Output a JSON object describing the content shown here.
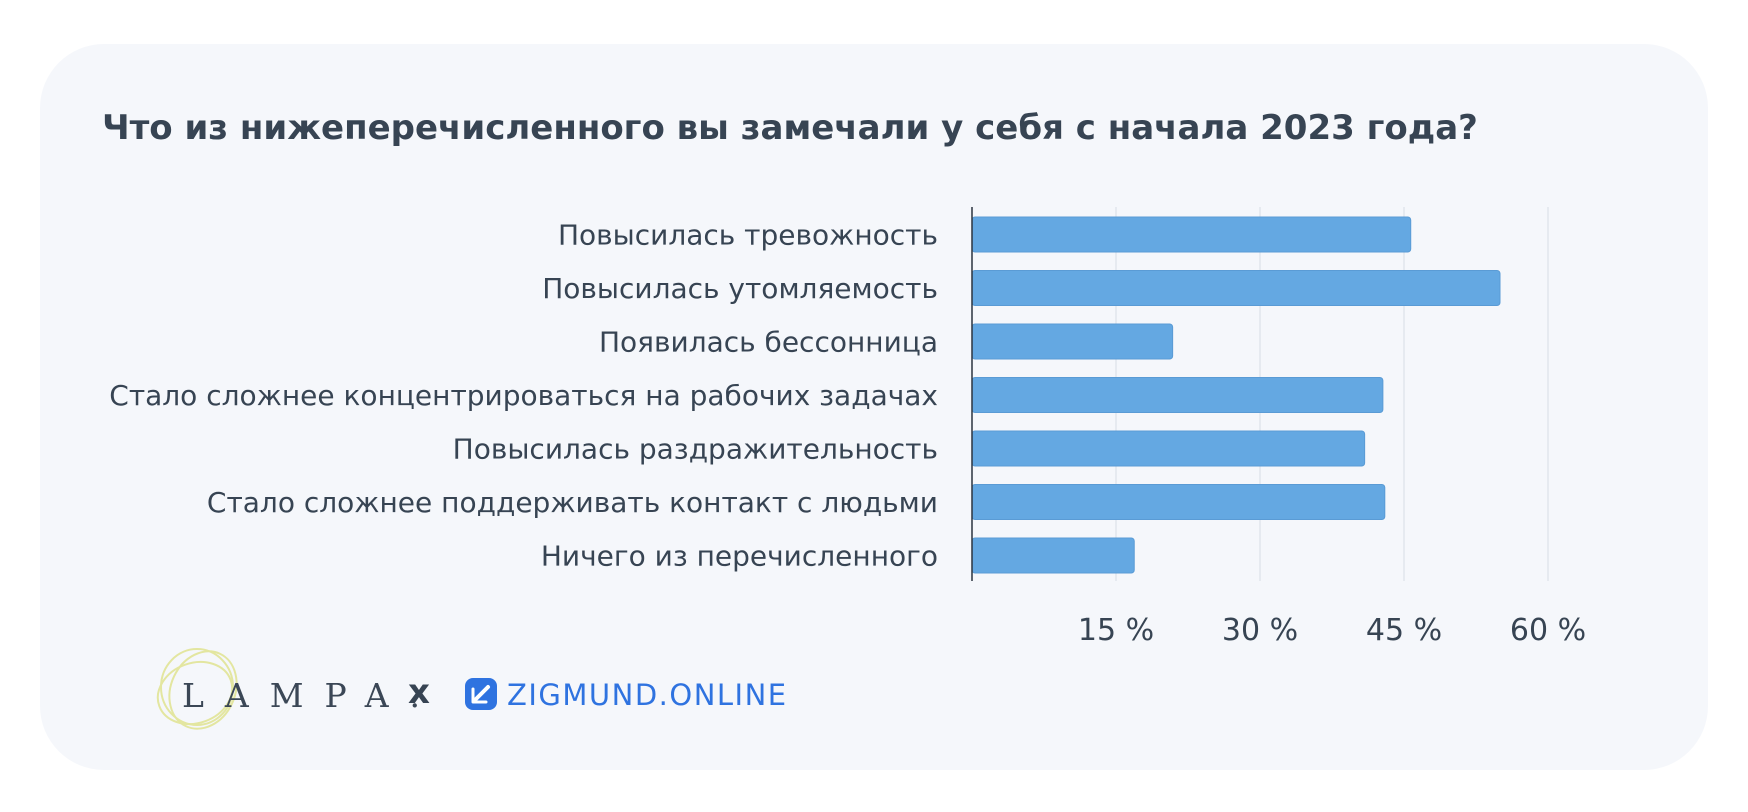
{
  "colors": {
    "bar": "#64a8e2",
    "bar_stroke": "#5a9bd5",
    "grid": "#e1e5ec",
    "axis": "#2b3440",
    "text": "#374453",
    "brand_blue": "#2f73e0",
    "lampa_circle": "#e3e6a0"
  },
  "chart_data": {
    "type": "bar",
    "orientation": "horizontal",
    "title": "Что из нижеперечисленного вы замечали у себя с начала 2023 года?",
    "categories": [
      "Повысилась тревожность",
      "Повысилась утомляемость",
      "Появилась бессонница",
      "Стало сложнее концентрироваться на рабочих задачах",
      "Повысилась раздражительность",
      "Стало сложнее поддерживать контакт с людьми",
      "Ничего из перечисленного"
    ],
    "values": [
      45.7,
      55,
      20.9,
      42.8,
      40.9,
      43,
      16.9
    ],
    "xlim": [
      0,
      60
    ],
    "xticks": [
      15,
      30,
      45,
      60
    ],
    "xtick_labels": [
      "15 %",
      "30 %",
      "45 %",
      "60 %"
    ],
    "grid": true,
    "legend": "none"
  },
  "footer": {
    "lampa_text": "LAMPA.",
    "separator": "x",
    "zigmund_text": "ZIGMUND.ONLINE",
    "lampa_icon": "lampa-circles-icon",
    "zigmund_icon": "zigmund-square-icon"
  }
}
